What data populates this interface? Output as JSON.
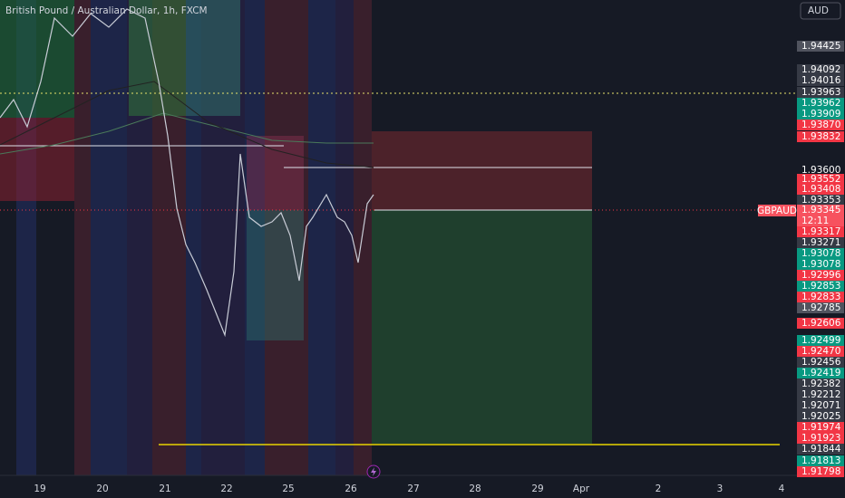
{
  "header": {
    "title": "British Pound / Australian Dollar, 1h, FXCM",
    "currency": "AUD"
  },
  "symbol_tag": "GBPAUD",
  "countdown": "12:11",
  "price_scale": [
    {
      "label": "1.94425",
      "color": "#50535e"
    },
    {
      "label": "1.94092",
      "color": "#363a45"
    },
    {
      "label": "1.94016",
      "color": "#363a45"
    },
    {
      "label": "1.93963",
      "color": "#363a45"
    },
    {
      "label": "1.93962",
      "color": "#089981"
    },
    {
      "label": "1.93909",
      "color": "#089981"
    },
    {
      "label": "1.93870",
      "color": "#f23645"
    },
    {
      "label": "1.93832",
      "color": "#f23645"
    },
    {
      "label": "1.93600",
      "color": "#161a25"
    },
    {
      "label": "1.93552",
      "color": "#f23645"
    },
    {
      "label": "1.93408",
      "color": "#f23645"
    },
    {
      "label": "1.93353",
      "color": "#363a45"
    },
    {
      "label": "1.93345",
      "color": "#f7525f"
    },
    {
      "label": "1.93317",
      "color": "#f23645"
    },
    {
      "label": "1.93271",
      "color": "#363a45"
    },
    {
      "label": "1.93078",
      "color": "#089981"
    },
    {
      "label": "1.93078",
      "color": "#089981"
    },
    {
      "label": "1.92996",
      "color": "#f23645"
    },
    {
      "label": "1.92853",
      "color": "#089981"
    },
    {
      "label": "1.92833",
      "color": "#f23645"
    },
    {
      "label": "1.92785",
      "color": "#50535e"
    },
    {
      "label": "1.92606",
      "color": "#f23645"
    },
    {
      "label": "1.92499",
      "color": "#089981"
    },
    {
      "label": "1.92470",
      "color": "#f23645"
    },
    {
      "label": "1.92456",
      "color": "#363a45"
    },
    {
      "label": "1.92419",
      "color": "#089981"
    },
    {
      "label": "1.92382",
      "color": "#363a45"
    },
    {
      "label": "1.92212",
      "color": "#363a45"
    },
    {
      "label": "1.92071",
      "color": "#363a45"
    },
    {
      "label": "1.92025",
      "color": "#363a45"
    },
    {
      "label": "1.91974",
      "color": "#f23645"
    },
    {
      "label": "1.91923",
      "color": "#f23645"
    },
    {
      "label": "1.91844",
      "color": "#363a45"
    },
    {
      "label": "1.91813",
      "color": "#089981"
    },
    {
      "label": "1.91798",
      "color": "#f23645"
    }
  ],
  "time_axis": [
    "19",
    "20",
    "21",
    "22",
    "25",
    "26",
    "27",
    "28",
    "29",
    "Apr",
    "2",
    "3",
    "4"
  ]
}
